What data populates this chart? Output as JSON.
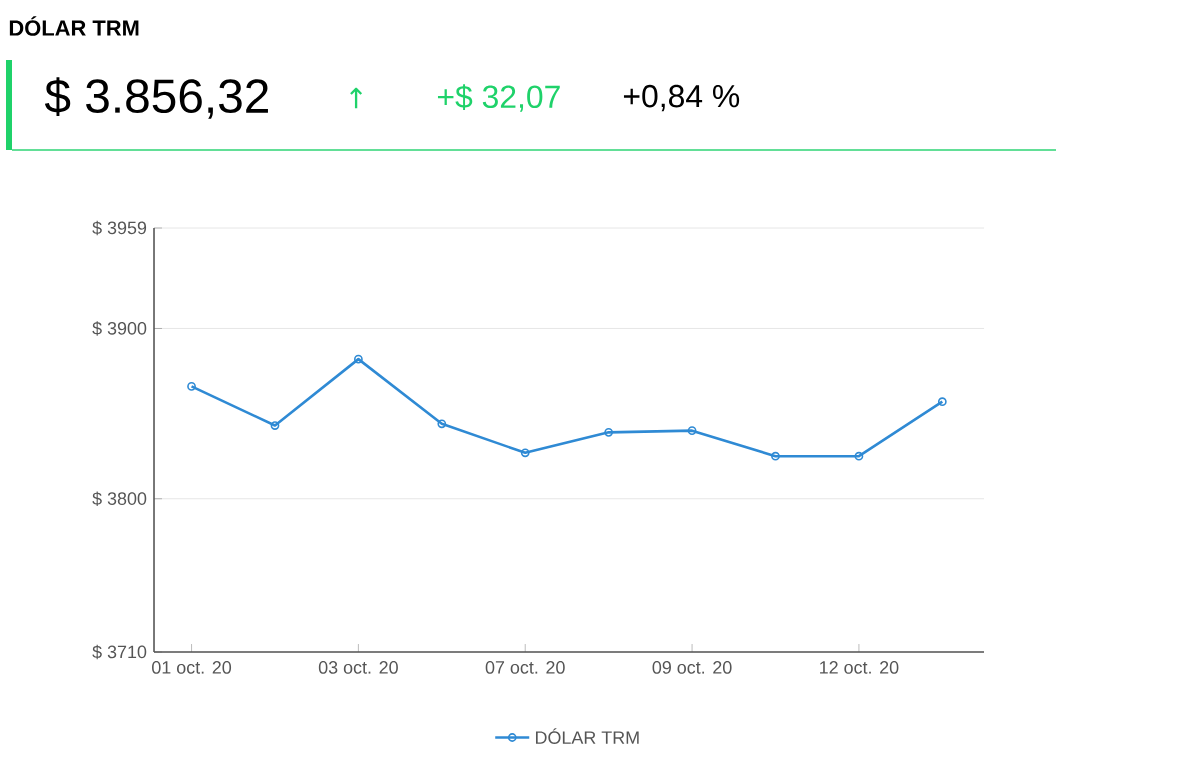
{
  "chart_data": {
    "type": "line",
    "title": "DÓLAR TRM",
    "subtitle": "$ 3.856,32",
    "annotations": [
      "↑",
      "+$ 32,07",
      "+0,84 %"
    ],
    "categories": [
      "01 oct. 20",
      null,
      "03 oct. 20",
      null,
      "07 oct. 20",
      null,
      "09 oct. 20",
      null,
      "12 oct. 20",
      null
    ],
    "series": [
      {
        "name": "DÓLAR TRM",
        "color": "#2f8ad4",
        "values": [
          3866,
          3843,
          3882,
          3844,
          3827,
          3839,
          3840,
          3825,
          3825,
          3857
        ]
      }
    ],
    "ylim": [
      3710,
      3959
    ],
    "yticks": [
      {
        "value": 3710,
        "label": "$ 3710"
      },
      {
        "value": 3800,
        "label": "$ 3800"
      },
      {
        "value": 3900,
        "label": "$ 3900"
      },
      {
        "value": 3959,
        "label": "$ 3959"
      }
    ],
    "grid": "y",
    "legend": "bottom",
    "marker": "circle",
    "line_style": "solid"
  }
}
